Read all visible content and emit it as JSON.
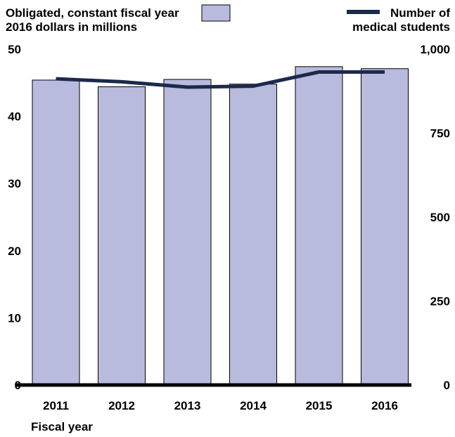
{
  "chart_data": {
    "type": "bar",
    "categories": [
      "2011",
      "2012",
      "2013",
      "2014",
      "2015",
      "2016"
    ],
    "series": [
      {
        "name": "Obligated, constant fiscal year 2016 dollars in millions",
        "type": "bar",
        "axis": "left",
        "values": [
          45.4,
          44.4,
          45.5,
          44.8,
          47.4,
          47.1
        ],
        "color": "#b8bbdd"
      },
      {
        "name": "Number of medical students",
        "type": "line",
        "axis": "right",
        "values": [
          912,
          903,
          887,
          890,
          932,
          932
        ],
        "color": "#1b2a4a"
      }
    ],
    "legend": {
      "bar_label_line1": "Obligated, constant fiscal year",
      "bar_label_line2": "2016 dollars in millions",
      "line_label_line1": "Number of",
      "line_label_line2": "medical students",
      "placement": "top"
    },
    "xlabel": "Fiscal year",
    "left_axis": {
      "ylim": [
        0,
        50
      ],
      "ticks": [
        "0",
        "10",
        "20",
        "30",
        "40",
        "50"
      ]
    },
    "right_axis": {
      "ylim": [
        0,
        1000
      ],
      "ticks": [
        "0",
        "250",
        "500",
        "750",
        "1,000"
      ]
    },
    "grid": false
  }
}
